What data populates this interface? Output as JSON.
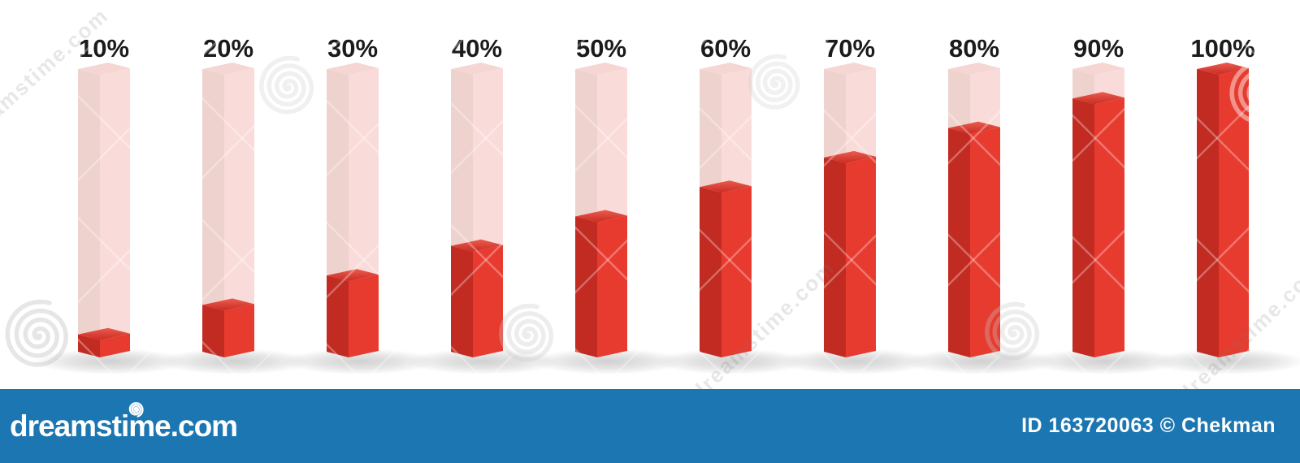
{
  "chart_data": {
    "type": "bar",
    "title": "",
    "xlabel": "",
    "ylabel": "",
    "categories": [
      "10%",
      "20%",
      "30%",
      "40%",
      "50%",
      "60%",
      "70%",
      "80%",
      "90%",
      "100%"
    ],
    "values": [
      10,
      20,
      30,
      40,
      50,
      60,
      70,
      80,
      90,
      100
    ],
    "unit": "%",
    "ylim": [
      0,
      100
    ],
    "style": "3d-column-percentage-indicators",
    "colors": {
      "fill_front": "#e83b2f",
      "fill_side": "#c12b21",
      "fill_top_back": "#ea5c4f",
      "fill_top_front": "#cb2b21",
      "track_front": "#f9dcda",
      "track_side": "#eed2ce",
      "track_top": "#f5d6d3",
      "label": "#1b1b1b",
      "shadow": "#aaaaaa"
    }
  },
  "watermark": {
    "corner_text": "dreamstime.com",
    "tile_text": "dreamstime.com",
    "spiral_icon": "spiral-icon"
  },
  "footer": {
    "site": "dreamstime.com",
    "credit": "ID 163720063 © Chekman",
    "bg_color": "#1b76b1",
    "text_color": "#ffffff"
  }
}
